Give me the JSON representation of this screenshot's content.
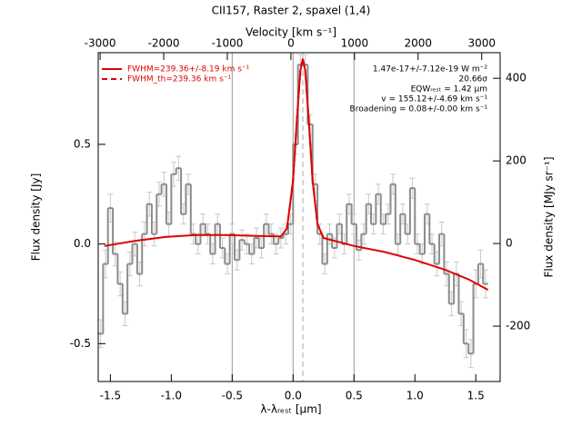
{
  "chart_data": {
    "type": "line",
    "title": "CII157, Raster 2, spaxel (1,4)",
    "xlabel": "λ-λᵣₑₛₜ [μm]",
    "x2label": "Velocity [km s⁻¹]",
    "ylabel": "Flux density [Jy]",
    "y2label": "Flux density [MJy sr⁻¹]",
    "xlim": [
      -1.6,
      1.7
    ],
    "xticks": [
      {
        "value": -1.5,
        "label": "-1.5"
      },
      {
        "value": -1,
        "label": "-1.0"
      },
      {
        "value": -0.5,
        "label": "-0.5"
      },
      {
        "value": 0,
        "label": "0.0"
      },
      {
        "value": 0.5,
        "label": "0.5"
      },
      {
        "value": 1,
        "label": "1.0"
      },
      {
        "value": 1.5,
        "label": "1.5"
      }
    ],
    "x2lim": [
      -3030,
      3290
    ],
    "x2ticks": [
      -3000,
      -2000,
      -1000,
      0,
      1000,
      2000,
      3000
    ],
    "ylim": [
      -0.69,
      0.96
    ],
    "yticks": [
      {
        "value": -0.5,
        "label": "-0.5"
      },
      {
        "value": 0,
        "label": "0.0"
      },
      {
        "value": 0.5,
        "label": "0.5"
      }
    ],
    "y2lim": [
      -334,
      462
    ],
    "y2ticks": [
      -200,
      0,
      200,
      400
    ],
    "vlines": [
      -0.5,
      0,
      0.5
    ],
    "dashed_vline": 0.08,
    "legend": "upper left",
    "spectrum": {
      "color": "#8c8c8c",
      "x": [
        -1.58,
        -1.54,
        -1.5,
        -1.46,
        -1.42,
        -1.38,
        -1.34,
        -1.3,
        -1.26,
        -1.22,
        -1.18,
        -1.14,
        -1.1,
        -1.06,
        -1.02,
        -0.98,
        -0.94,
        -0.9,
        -0.86,
        -0.82,
        -0.78,
        -0.74,
        -0.7,
        -0.66,
        -0.62,
        -0.58,
        -0.54,
        -0.5,
        -0.46,
        -0.42,
        -0.38,
        -0.34,
        -0.3,
        -0.26,
        -0.22,
        -0.18,
        -0.14,
        -0.1,
        -0.06,
        -0.02,
        0.02,
        0.06,
        0.1,
        0.14,
        0.18,
        0.22,
        0.26,
        0.3,
        0.34,
        0.38,
        0.42,
        0.46,
        0.5,
        0.54,
        0.58,
        0.62,
        0.66,
        0.7,
        0.74,
        0.78,
        0.82,
        0.86,
        0.9,
        0.94,
        0.98,
        1.02,
        1.06,
        1.1,
        1.14,
        1.18,
        1.22,
        1.26,
        1.3,
        1.34,
        1.38,
        1.42,
        1.46,
        1.5,
        1.54,
        1.58
      ],
      "values": [
        -0.45,
        -0.1,
        0.18,
        -0.05,
        -0.2,
        -0.35,
        -0.1,
        0.0,
        -0.15,
        0.05,
        0.2,
        0.05,
        0.25,
        0.3,
        0.1,
        0.35,
        0.38,
        0.15,
        0.3,
        0.05,
        0.0,
        0.1,
        0.05,
        -0.05,
        0.1,
        -0.02,
        -0.1,
        0.05,
        -0.08,
        0.02,
        0.0,
        -0.05,
        0.03,
        -0.02,
        0.1,
        0.05,
        0.0,
        0.03,
        0.05,
        0.1,
        0.5,
        0.9,
        0.9,
        0.6,
        0.3,
        0.05,
        -0.1,
        0.05,
        -0.02,
        0.1,
        0.0,
        0.2,
        0.1,
        -0.03,
        0.05,
        0.2,
        0.1,
        0.25,
        0.1,
        0.15,
        0.3,
        0.0,
        0.15,
        0.05,
        0.28,
        0.0,
        -0.05,
        0.15,
        0.0,
        -0.1,
        0.05,
        -0.15,
        -0.3,
        -0.15,
        -0.35,
        -0.5,
        -0.55,
        -0.2,
        -0.1,
        -0.2
      ],
      "errors": [
        0.07,
        0.07,
        0.07,
        0.06,
        0.06,
        0.06,
        0.06,
        0.06,
        0.06,
        0.06,
        0.06,
        0.06,
        0.06,
        0.06,
        0.06,
        0.06,
        0.06,
        0.05,
        0.05,
        0.05,
        0.05,
        0.05,
        0.05,
        0.05,
        0.05,
        0.05,
        0.05,
        0.05,
        0.05,
        0.05,
        0.05,
        0.05,
        0.05,
        0.05,
        0.05,
        0.05,
        0.05,
        0.05,
        0.05,
        0.05,
        0.05,
        0.05,
        0.05,
        0.05,
        0.05,
        0.05,
        0.05,
        0.05,
        0.05,
        0.05,
        0.05,
        0.05,
        0.05,
        0.05,
        0.05,
        0.05,
        0.05,
        0.05,
        0.05,
        0.05,
        0.05,
        0.05,
        0.05,
        0.05,
        0.05,
        0.05,
        0.05,
        0.05,
        0.05,
        0.06,
        0.06,
        0.06,
        0.06,
        0.06,
        0.06,
        0.07,
        0.07,
        0.07,
        0.07,
        0.07
      ]
    },
    "series": [
      {
        "name": "FWHM=239.36+/-8.19 km s⁻¹",
        "color": "#e00000",
        "dashed": false,
        "x": [
          -1.55,
          -1.3,
          -1.05,
          -0.8,
          -0.55,
          -0.3,
          -0.1,
          -0.05,
          0.0,
          0.03,
          0.06,
          0.08,
          0.1,
          0.13,
          0.16,
          0.2,
          0.25,
          0.5,
          0.75,
          1.0,
          1.25,
          1.45,
          1.6
        ],
        "values": [
          -0.01,
          0.015,
          0.035,
          0.045,
          0.045,
          0.04,
          0.038,
          0.078,
          0.32,
          0.61,
          0.87,
          0.93,
          0.87,
          0.61,
          0.32,
          0.1,
          0.03,
          -0.01,
          -0.04,
          -0.08,
          -0.13,
          -0.18,
          -0.23
        ]
      },
      {
        "name": "FWHM_th=239.36 km s⁻¹",
        "color": "#e00000",
        "dashed": true,
        "x": [
          -0.05,
          0.0,
          0.03,
          0.06,
          0.08,
          0.1,
          0.13,
          0.16,
          0.2,
          0.25
        ],
        "values": [
          0.078,
          0.32,
          0.61,
          0.87,
          0.93,
          0.87,
          0.61,
          0.32,
          0.1,
          0.03
        ]
      }
    ],
    "annotations": [
      "1.47e-17+/-7.12e-19 W m⁻²",
      "20.66σ",
      "EQWᵣₑₛₜ = 1.42 μm",
      "v = 155.12+/-4.69 km s⁻¹",
      "Broadening = 0.08+/-0.00 km s⁻¹"
    ]
  }
}
